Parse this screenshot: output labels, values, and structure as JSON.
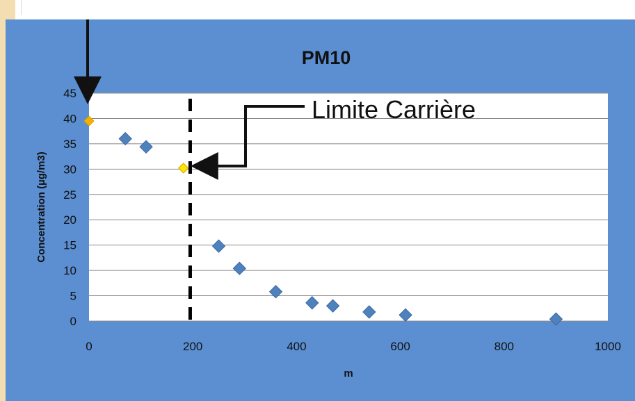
{
  "chart_data": {
    "type": "scatter",
    "title": "PM10",
    "xlabel": "m",
    "ylabel": "Concentration (µg/m3)",
    "xlim": [
      0,
      1000
    ],
    "ylim": [
      0,
      45
    ],
    "x_ticks": [
      "0",
      "200",
      "400",
      "600",
      "800",
      "1000"
    ],
    "y_ticks": [
      "0",
      "5",
      "10",
      "15",
      "20",
      "25",
      "30",
      "35",
      "40",
      "45"
    ],
    "grid": "horizontal",
    "points": [
      {
        "x": 0,
        "y": 39.5,
        "highlight": "source"
      },
      {
        "x": 70,
        "y": 36
      },
      {
        "x": 110,
        "y": 34.4
      },
      {
        "x": 182,
        "y": 30.2,
        "highlight": "limit"
      },
      {
        "x": 250,
        "y": 14.8
      },
      {
        "x": 290,
        "y": 10.4
      },
      {
        "x": 360,
        "y": 5.8
      },
      {
        "x": 430,
        "y": 3.6
      },
      {
        "x": 470,
        "y": 3
      },
      {
        "x": 540,
        "y": 1.8
      },
      {
        "x": 610,
        "y": 1.2
      },
      {
        "x": 900,
        "y": 0.4
      }
    ],
    "vertical_line_x": 195,
    "annotation": "Limite Carrière",
    "colors": {
      "panel_bg": "#5b8fd2",
      "plot_bg": "#ffffff",
      "marker": "#4f81bd",
      "source_marker": "#f5b000",
      "limit_marker": "#ffe600",
      "grid": "#888888"
    }
  }
}
